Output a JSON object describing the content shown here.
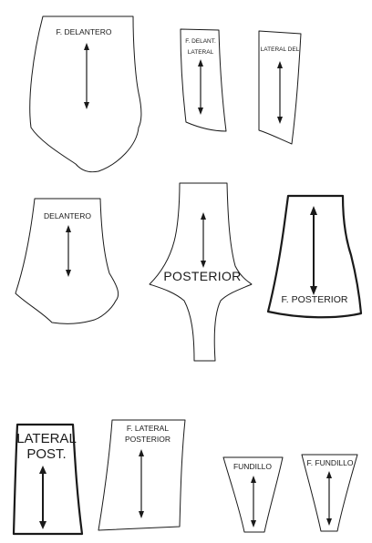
{
  "pieces": {
    "f_delantero": {
      "label": "F. DELANTERO"
    },
    "f_delant_lateral": {
      "line1": "F. DELANT.",
      "line2": "LATERAL"
    },
    "lateral_del": {
      "label": "LATERAL DEL"
    },
    "delantero": {
      "label": "DELANTERO"
    },
    "posterior": {
      "label": "POSTERIOR"
    },
    "f_posterior": {
      "label": "F. POSTERIOR"
    },
    "lateral_post": {
      "line1": "LATERAL",
      "line2": "POST."
    },
    "f_lateral_posterior": {
      "line1": "F. LATERAL",
      "line2": "POSTERIOR"
    },
    "fundillo": {
      "label": "FUNDILLO"
    },
    "f_fundillo": {
      "label": "F. FUNDILLO"
    }
  },
  "colors": {
    "outline": "#1a1a1a",
    "background": "#ffffff"
  }
}
